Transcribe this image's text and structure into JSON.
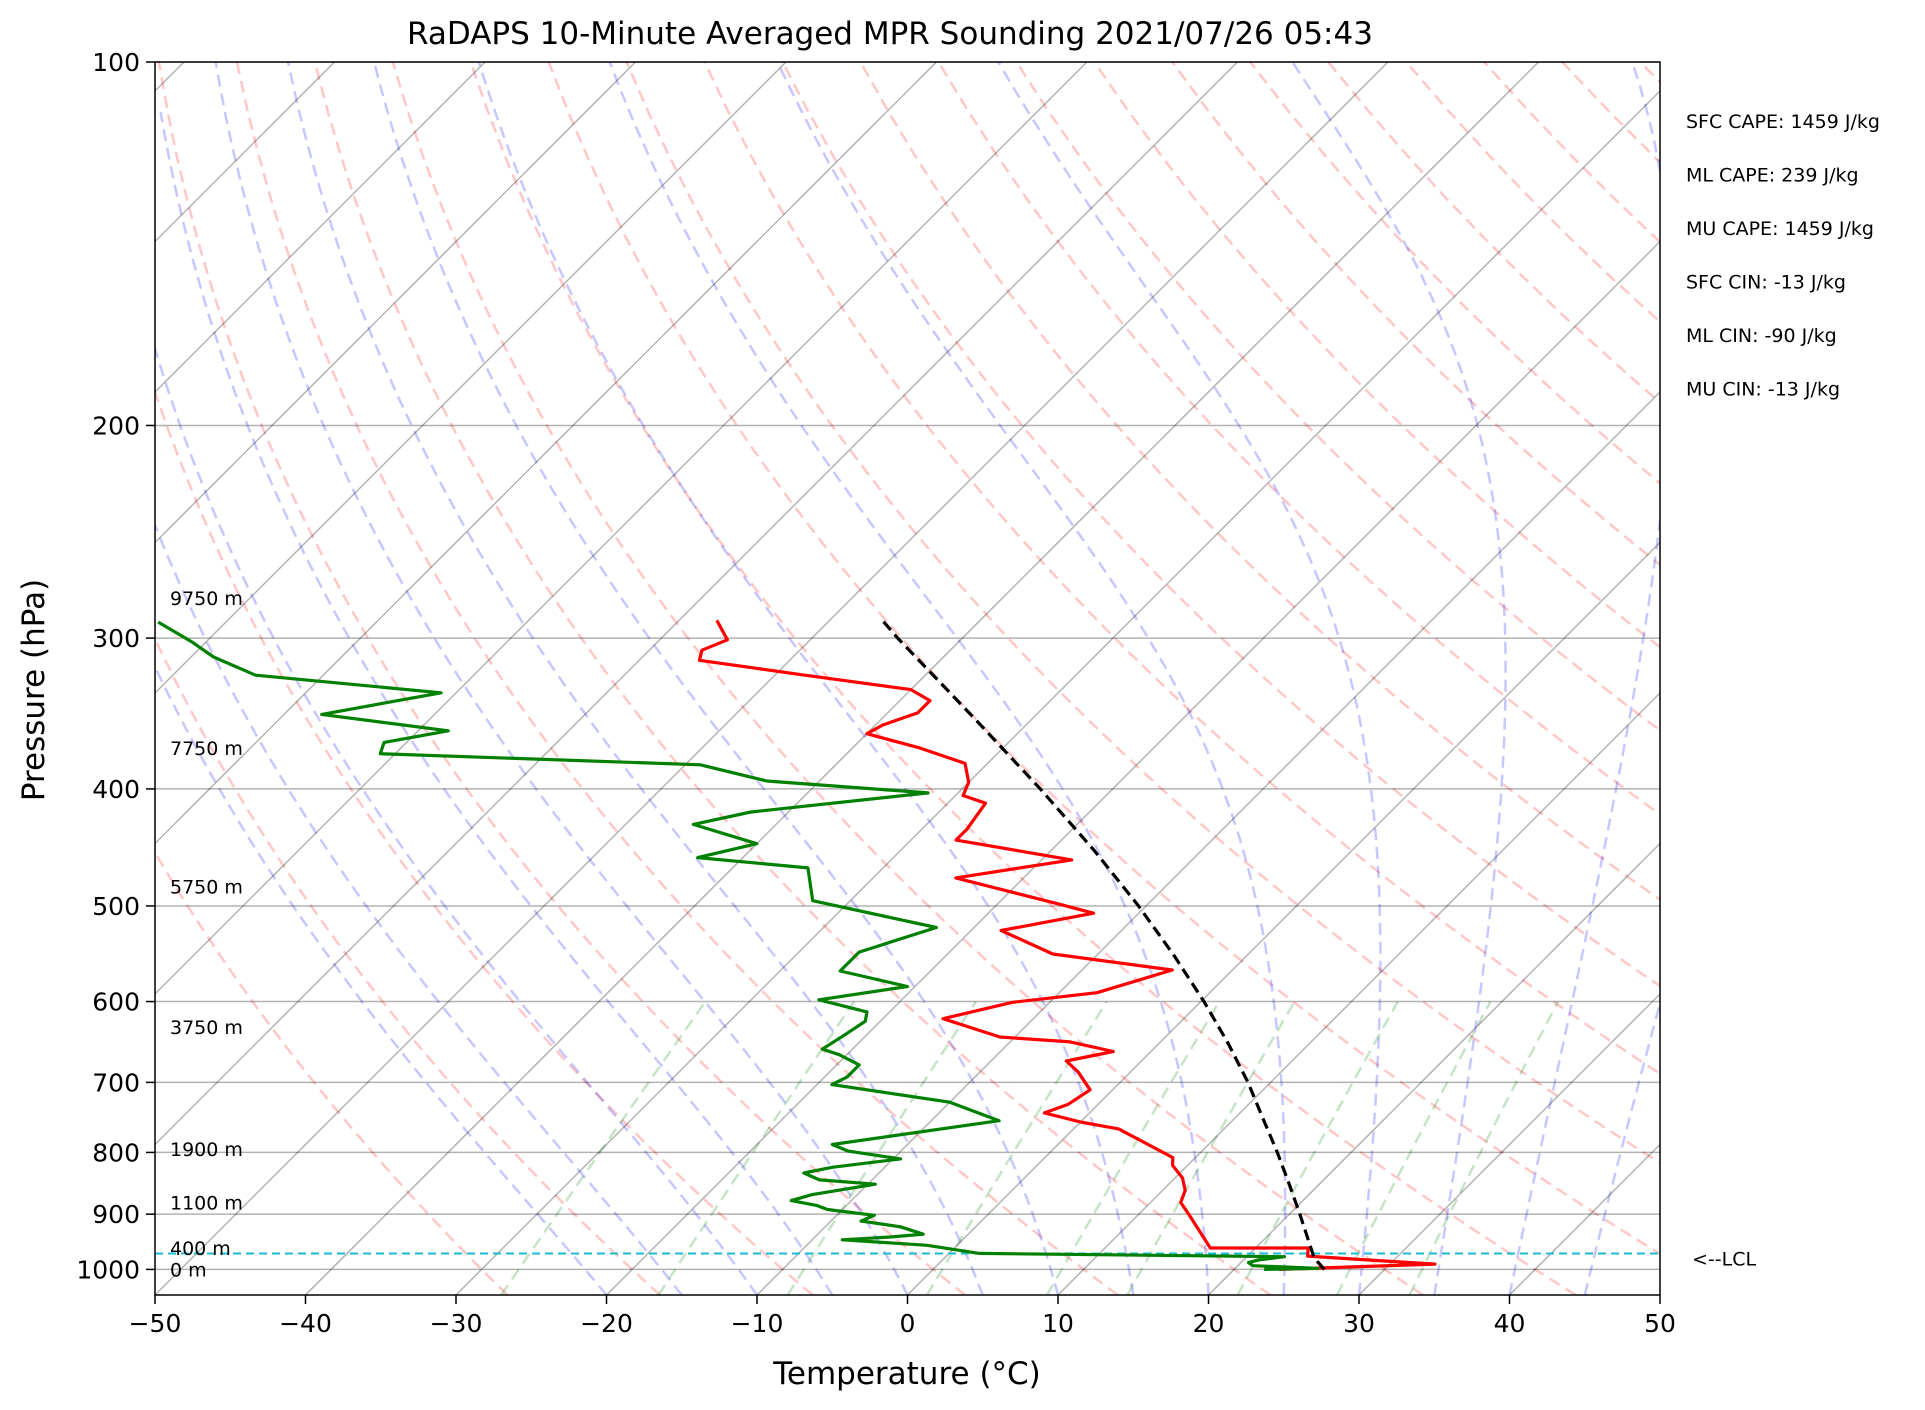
{
  "chart_data": {
    "type": "line",
    "subtype": "skew-t log-p sounding",
    "title": "RaDAPS 10-Minute Averaged MPR Sounding 2021/07/26 05:43",
    "xlabel": "Temperature (°C)",
    "ylabel": "Pressure (hPa)",
    "xlim": [
      -50,
      50
    ],
    "ylim": [
      1050,
      100
    ],
    "y_scale": "log",
    "grid": true,
    "x_ticks": [
      "−50",
      "−40",
      "−30",
      "−20",
      "−10",
      "0",
      "10",
      "20",
      "30",
      "40",
      "50"
    ],
    "y_ticks": [
      "100",
      "200",
      "300",
      "400",
      "500",
      "600",
      "700",
      "800",
      "900",
      "1000"
    ],
    "height_labels": [
      {
        "p": 1000,
        "text": "0 m"
      },
      {
        "p": 960,
        "text": "400 m"
      },
      {
        "p": 880,
        "text": "1100 m"
      },
      {
        "p": 795,
        "text": "1900 m"
      },
      {
        "p": 630,
        "text": "3750 m"
      },
      {
        "p": 482,
        "text": "5750 m"
      },
      {
        "p": 370,
        "text": "7750 m"
      },
      {
        "p": 278,
        "text": "9750 m"
      }
    ],
    "stats": [
      "SFC CAPE: 1459 J/kg",
      "ML CAPE: 239 J/kg",
      "MU CAPE: 1459 J/kg",
      "SFC CIN: -13 J/kg",
      "ML CIN: -90 J/kg",
      "MU CIN: -13 J/kg"
    ],
    "lcl": {
      "p": 970,
      "label": "<--LCL"
    },
    "series": [
      {
        "color": "#ff0000",
        "points": [
          [
            1000,
            23.0
          ],
          [
            990,
            33.0
          ],
          [
            985,
            30.0
          ],
          [
            975,
            24.0
          ],
          [
            960,
            23.5
          ],
          [
            960,
            17.0
          ],
          [
            903,
            13.5
          ],
          [
            880,
            12.0
          ],
          [
            860,
            11.5
          ],
          [
            840,
            10.5
          ],
          [
            820,
            9.0
          ],
          [
            808,
            8.5
          ],
          [
            765,
            3.0
          ],
          [
            755,
            0.0
          ],
          [
            742,
            -3.0
          ],
          [
            730,
            -2.0
          ],
          [
            710,
            -1.5
          ],
          [
            686,
            -3.5
          ],
          [
            672,
            -5.0
          ],
          [
            660,
            -2.5
          ],
          [
            648,
            -6.0
          ],
          [
            642,
            -11.0
          ],
          [
            620,
            -16.0
          ],
          [
            601,
            -12.5
          ],
          [
            590,
            -7.5
          ],
          [
            565,
            -4.0
          ],
          [
            548,
            -13.0
          ],
          [
            524,
            -18.0
          ],
          [
            507,
            -13.0
          ],
          [
            498,
            -16.0
          ],
          [
            474,
            -24.5
          ],
          [
            458,
            -18.0
          ],
          [
            441,
            -27.0
          ],
          [
            432,
            -27.0
          ],
          [
            411,
            -27.5
          ],
          [
            405,
            -29.5
          ],
          [
            395,
            -30.0
          ],
          [
            381,
            -31.5
          ],
          [
            370,
            -35.5
          ],
          [
            360,
            -40.0
          ],
          [
            354,
            -39.5
          ],
          [
            346,
            -38.0
          ],
          [
            338,
            -38.0
          ],
          [
            331,
            -40.0
          ],
          [
            322,
            -48.0
          ],
          [
            313,
            -56.0
          ],
          [
            307,
            -56.5
          ],
          [
            301,
            -55.5
          ],
          [
            290,
            -57.5
          ]
        ]
      },
      {
        "color": "#008000",
        "points": [
          [
            1000,
            22.0
          ],
          [
            998,
            25.5
          ],
          [
            993,
            21.0
          ],
          [
            987,
            20.5
          ],
          [
            982,
            21.0
          ],
          [
            976,
            22.5
          ],
          [
            970,
            2.0
          ],
          [
            955,
            -2.0
          ],
          [
            945,
            -8.0
          ],
          [
            940,
            -5.0
          ],
          [
            935,
            -3.0
          ],
          [
            922,
            -5.0
          ],
          [
            912,
            -8.0
          ],
          [
            902,
            -7.5
          ],
          [
            892,
            -11.0
          ],
          [
            885,
            -12.0
          ],
          [
            877,
            -14.0
          ],
          [
            867,
            -13.0
          ],
          [
            850,
            -9.5
          ],
          [
            843,
            -13.5
          ],
          [
            832,
            -15.0
          ],
          [
            823,
            -13.5
          ],
          [
            810,
            -9.5
          ],
          [
            798,
            -13.5
          ],
          [
            788,
            -15.0
          ],
          [
            753,
            -5.5
          ],
          [
            727,
            -10.0
          ],
          [
            703,
            -19.0
          ],
          [
            693,
            -18.5
          ],
          [
            677,
            -18.5
          ],
          [
            664,
            -20.5
          ],
          [
            657,
            -22.0
          ],
          [
            641,
            -21.5
          ],
          [
            623,
            -21.0
          ],
          [
            612,
            -21.5
          ],
          [
            598,
            -25.5
          ],
          [
            583,
            -20.5
          ],
          [
            566,
            -26.0
          ],
          [
            546,
            -26.0
          ],
          [
            521,
            -22.5
          ],
          [
            495,
            -32.5
          ],
          [
            465,
            -35.0
          ],
          [
            456,
            -43.0
          ],
          [
            444,
            -40.0
          ],
          [
            428,
            -45.5
          ],
          [
            418,
            -42.5
          ],
          [
            403,
            -32.0
          ],
          [
            394,
            -43.5
          ],
          [
            382,
            -49.0
          ],
          [
            374,
            -71.0
          ],
          [
            366,
            -71.5
          ],
          [
            358,
            -68.0
          ],
          [
            347,
            -77.5
          ],
          [
            333,
            -71.0
          ],
          [
            322,
            -84.5
          ],
          [
            311,
            -88.5
          ],
          [
            302,
            -91.0
          ],
          [
            291,
            -94.5
          ]
        ]
      },
      {
        "color": "#000000",
        "dashed": true,
        "points": [
          [
            1000,
            26.0
          ],
          [
            985,
            25.0
          ],
          [
            975,
            24.4
          ],
          [
            950,
            23.2
          ],
          [
            900,
            20.7
          ],
          [
            850,
            18.0
          ],
          [
            800,
            15.1
          ],
          [
            750,
            11.9
          ],
          [
            700,
            8.5
          ],
          [
            650,
            4.6
          ],
          [
            600,
            0.2
          ],
          [
            550,
            -4.8
          ],
          [
            500,
            -10.5
          ],
          [
            450,
            -17.1
          ],
          [
            400,
            -24.8
          ],
          [
            350,
            -33.8
          ],
          [
            300,
            -44.3
          ],
          [
            290,
            -46.5
          ]
        ]
      }
    ]
  }
}
